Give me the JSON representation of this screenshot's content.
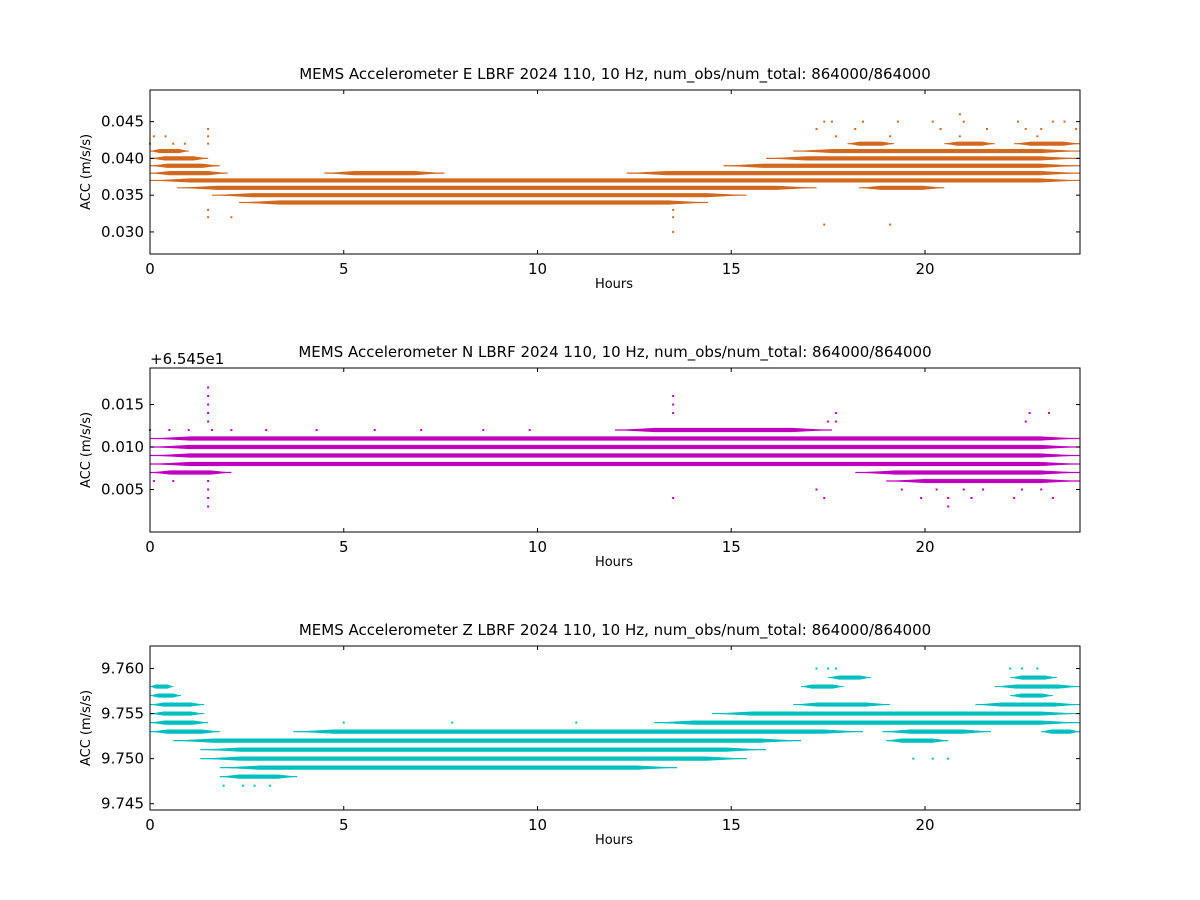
{
  "chart_data": [
    {
      "type": "scatter",
      "title": "MEMS Accelerometer E LBRF 2024 110, 10 Hz, num_obs/num_total: 864000/864000",
      "xlabel": "Hours",
      "ylabel": "ACC (m/s/s)",
      "xlim": [
        0,
        24
      ],
      "ylim": [
        0.027,
        0.0493
      ],
      "xticks": [
        "0",
        "5",
        "10",
        "15",
        "20"
      ],
      "yticks": [
        "0.030",
        "0.035",
        "0.040",
        "0.045"
      ],
      "offset_label": "",
      "color": "#d2691e",
      "quantum": 0.001,
      "bands": [
        {
          "y": 0.041,
          "x": [
            [
              0.0,
              1.0
            ],
            [
              16.6,
              24.0
            ]
          ]
        },
        {
          "y": 0.04,
          "x": [
            [
              0.0,
              1.5
            ],
            [
              15.9,
              24.0
            ]
          ]
        },
        {
          "y": 0.039,
          "x": [
            [
              0.0,
              1.8
            ],
            [
              14.8,
              24.0
            ]
          ]
        },
        {
          "y": 0.038,
          "x": [
            [
              0.0,
              2.0
            ],
            [
              4.5,
              7.6
            ],
            [
              12.3,
              24.0
            ]
          ]
        },
        {
          "y": 0.037,
          "x": [
            [
              0.0,
              24.0
            ]
          ]
        },
        {
          "y": 0.036,
          "x": [
            [
              0.7,
              17.2
            ],
            [
              18.3,
              20.5
            ]
          ]
        },
        {
          "y": 0.035,
          "x": [
            [
              1.6,
              15.4
            ]
          ]
        },
        {
          "y": 0.034,
          "x": [
            [
              2.3,
              14.4
            ]
          ]
        },
        {
          "y": 0.042,
          "x": [
            [
              18.0,
              19.2
            ],
            [
              20.5,
              21.8
            ],
            [
              22.3,
              24.0
            ]
          ]
        }
      ],
      "sparse": [
        {
          "y": 0.045,
          "x": [
            17.4,
            17.6,
            18.4,
            19.3,
            20.2,
            21.0,
            22.4,
            23.3,
            23.6
          ]
        },
        {
          "y": 0.044,
          "x": [
            1.5,
            17.2,
            18.2,
            20.4,
            21.6,
            22.6,
            23.0,
            23.9
          ]
        },
        {
          "y": 0.043,
          "x": [
            0.1,
            0.4,
            1.5,
            17.7,
            19.1,
            20.9,
            22.9
          ]
        },
        {
          "y": 0.042,
          "x": [
            0.0,
            0.6,
            0.9,
            1.5
          ]
        },
        {
          "y": 0.033,
          "x": [
            1.5,
            13.5
          ]
        },
        {
          "y": 0.032,
          "x": [
            1.5,
            2.1,
            13.5
          ]
        },
        {
          "y": 0.031,
          "x": [
            17.4,
            19.1
          ]
        },
        {
          "y": 0.03,
          "x": [
            13.5
          ]
        },
        {
          "y": 0.046,
          "x": [
            20.9
          ]
        }
      ]
    },
    {
      "type": "scatter",
      "title": "MEMS Accelerometer N LBRF 2024 110, 10 Hz, num_obs/num_total: 864000/864000",
      "xlabel": "Hours",
      "ylabel": "ACC (m/s/s)",
      "xlim": [
        0,
        24
      ],
      "ylim": [
        0.0,
        0.0193
      ],
      "xticks": [
        "0",
        "5",
        "10",
        "15",
        "20"
      ],
      "yticks": [
        "0.005",
        "0.010",
        "0.015"
      ],
      "offset_label": "+6.545e1",
      "color": "#bf00bf",
      "quantum": 0.001,
      "bands": [
        {
          "y": 0.011,
          "x": [
            [
              0.0,
              24.0
            ]
          ]
        },
        {
          "y": 0.01,
          "x": [
            [
              0.0,
              24.0
            ]
          ]
        },
        {
          "y": 0.009,
          "x": [
            [
              0.0,
              24.0
            ]
          ]
        },
        {
          "y": 0.008,
          "x": [
            [
              0.0,
              24.0
            ]
          ]
        },
        {
          "y": 0.007,
          "x": [
            [
              0.0,
              2.1
            ],
            [
              18.2,
              24.0
            ]
          ]
        },
        {
          "y": 0.006,
          "x": [
            [
              19.0,
              24.0
            ]
          ]
        },
        {
          "y": 0.012,
          "x": [
            [
              12.0,
              17.6
            ]
          ]
        }
      ],
      "sparse": [
        {
          "y": 0.013,
          "x": [
            1.5,
            17.5,
            17.7,
            22.6
          ]
        },
        {
          "y": 0.014,
          "x": [
            1.5,
            13.5,
            17.7,
            22.7,
            23.2
          ]
        },
        {
          "y": 0.015,
          "x": [
            1.5,
            13.5
          ]
        },
        {
          "y": 0.016,
          "x": [
            1.5,
            13.5
          ]
        },
        {
          "y": 0.017,
          "x": [
            1.5
          ]
        },
        {
          "y": 0.005,
          "x": [
            1.5,
            17.2,
            19.4,
            20.3,
            21.0,
            21.5,
            22.5,
            23.0
          ]
        },
        {
          "y": 0.004,
          "x": [
            1.5,
            13.5,
            17.4,
            19.9,
            20.6,
            21.2,
            22.3,
            23.3
          ]
        },
        {
          "y": 0.003,
          "x": [
            1.5,
            20.6
          ]
        },
        {
          "y": 0.006,
          "x": [
            0.1,
            0.6,
            1.5
          ]
        },
        {
          "y": 0.012,
          "x": [
            0.0,
            0.5,
            1.0,
            1.6,
            2.1,
            3.0,
            4.3,
            5.8,
            7.0,
            8.6,
            9.8
          ]
        }
      ]
    },
    {
      "type": "scatter",
      "title": "MEMS Accelerometer Z LBRF 2024 110, 10 Hz, num_obs/num_total: 864000/864000",
      "xlabel": "Hours",
      "ylabel": "ACC (m/s/s)",
      "xlim": [
        0,
        24
      ],
      "ylim": [
        9.7443,
        9.7625
      ],
      "xticks": [
        "0",
        "5",
        "10",
        "15",
        "20"
      ],
      "yticks": [
        "9.745",
        "9.750",
        "9.755",
        "9.760"
      ],
      "offset_label": "",
      "color": "#00bfbf",
      "quantum": 0.001,
      "bands": [
        {
          "y": 9.758,
          "x": [
            [
              0.0,
              0.6
            ],
            [
              16.8,
              17.9
            ],
            [
              21.8,
              24.0
            ]
          ]
        },
        {
          "y": 9.757,
          "x": [
            [
              0.0,
              0.8
            ],
            [
              22.2,
              23.3
            ]
          ]
        },
        {
          "y": 9.756,
          "x": [
            [
              0.0,
              1.4
            ],
            [
              16.6,
              19.1
            ],
            [
              21.3,
              24.0
            ]
          ]
        },
        {
          "y": 9.755,
          "x": [
            [
              0.0,
              1.4
            ],
            [
              14.5,
              24.0
            ]
          ]
        },
        {
          "y": 9.754,
          "x": [
            [
              0.0,
              1.5
            ],
            [
              13.0,
              24.0
            ]
          ]
        },
        {
          "y": 9.753,
          "x": [
            [
              0.0,
              1.8
            ],
            [
              3.7,
              18.4
            ],
            [
              18.9,
              21.7
            ],
            [
              23.0,
              24.0
            ]
          ]
        },
        {
          "y": 9.752,
          "x": [
            [
              0.6,
              16.8
            ],
            [
              19.0,
              20.6
            ]
          ]
        },
        {
          "y": 9.751,
          "x": [
            [
              1.3,
              15.9
            ]
          ]
        },
        {
          "y": 9.75,
          "x": [
            [
              1.3,
              15.4
            ]
          ]
        },
        {
          "y": 9.749,
          "x": [
            [
              1.8,
              13.6
            ]
          ]
        },
        {
          "y": 9.748,
          "x": [
            [
              1.8,
              3.8
            ]
          ]
        },
        {
          "y": 9.759,
          "x": [
            [
              17.5,
              18.6
            ],
            [
              22.2,
              23.4
            ]
          ]
        }
      ],
      "sparse": [
        {
          "y": 9.76,
          "x": [
            17.2,
            17.5,
            17.7,
            22.2,
            22.5,
            22.9
          ]
        },
        {
          "y": 9.747,
          "x": [
            1.9,
            2.4,
            2.7,
            3.1
          ]
        },
        {
          "y": 9.75,
          "x": [
            19.7,
            20.2,
            20.6
          ]
        },
        {
          "y": 9.754,
          "x": [
            5.0,
            7.8,
            11.0
          ]
        }
      ]
    }
  ]
}
